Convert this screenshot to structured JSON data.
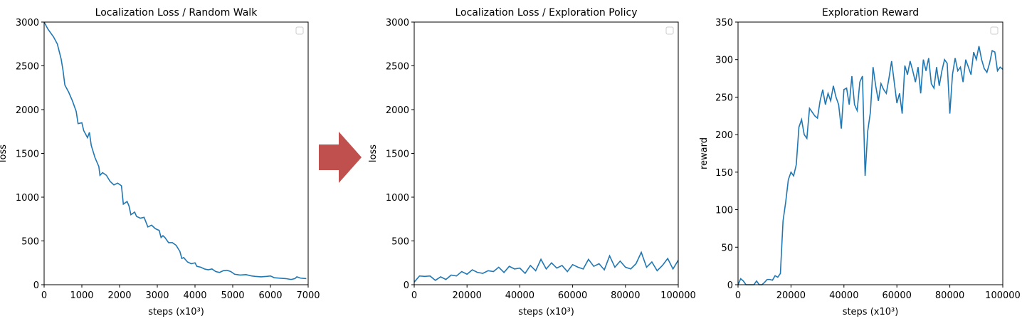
{
  "chart_data": [
    {
      "type": "line",
      "title": "Localization Loss / Random Walk",
      "xlabel": "steps (x10³)",
      "ylabel": "loss",
      "x": [
        0,
        100,
        250,
        350,
        450,
        500,
        550,
        650,
        750,
        850,
        900,
        1000,
        1050,
        1150,
        1200,
        1250,
        1350,
        1450,
        1480,
        1550,
        1650,
        1750,
        1850,
        1950,
        2050,
        2100,
        2200,
        2250,
        2300,
        2400,
        2450,
        2550,
        2650,
        2750,
        2850,
        2950,
        3050,
        3100,
        3150,
        3200,
        3300,
        3400,
        3500,
        3600,
        3650,
        3700,
        3800,
        3900,
        4000,
        4050,
        4150,
        4250,
        4350,
        4450,
        4550,
        4650,
        4750,
        4850,
        4950,
        5050,
        5200,
        5350,
        5500,
        5600,
        5750,
        5900,
        6000,
        6100,
        6250,
        6400,
        6550,
        6650,
        6700,
        6800,
        6950
      ],
      "series": [
        {
          "color": "#1f77b4",
          "values": [
            3000,
            2920,
            2830,
            2750,
            2580,
            2450,
            2280,
            2200,
            2100,
            1980,
            1840,
            1850,
            1760,
            1680,
            1740,
            1590,
            1450,
            1350,
            1250,
            1280,
            1250,
            1180,
            1140,
            1160,
            1130,
            920,
            950,
            900,
            800,
            830,
            780,
            760,
            770,
            660,
            680,
            640,
            620,
            540,
            560,
            540,
            480,
            480,
            450,
            380,
            300,
            310,
            260,
            240,
            250,
            210,
            200,
            180,
            170,
            180,
            150,
            140,
            160,
            165,
            150,
            120,
            110,
            115,
            100,
            95,
            90,
            95,
            100,
            80,
            75,
            70,
            60,
            70,
            90,
            75,
            70
          ]
        }
      ],
      "xlim": [
        0,
        7000
      ],
      "ylim": [
        0,
        3000
      ],
      "xticks": [
        0,
        1000,
        2000,
        3000,
        4000,
        5000,
        6000,
        7000
      ],
      "yticks": [
        0,
        500,
        1000,
        1500,
        2000,
        2500,
        3000
      ]
    },
    {
      "type": "line",
      "title": "Localization Loss / Exploration Policy",
      "xlabel": "steps (x10³)",
      "ylabel": "loss",
      "x": [
        0,
        2000,
        4000,
        6000,
        8000,
        10000,
        12000,
        14000,
        16000,
        18000,
        20000,
        22000,
        24000,
        26000,
        28000,
        30000,
        32000,
        34000,
        36000,
        38000,
        40000,
        42000,
        44000,
        46000,
        48000,
        50000,
        52000,
        54000,
        56000,
        58000,
        60000,
        62000,
        64000,
        66000,
        68000,
        70000,
        72000,
        74000,
        76000,
        78000,
        80000,
        82000,
        84000,
        86000,
        88000,
        90000,
        92000,
        94000,
        96000,
        98000,
        100000
      ],
      "series": [
        {
          "color": "#1f77b4",
          "values": [
            30,
            100,
            95,
            100,
            50,
            90,
            60,
            110,
            100,
            150,
            120,
            170,
            140,
            130,
            160,
            150,
            200,
            140,
            210,
            180,
            190,
            130,
            220,
            160,
            290,
            180,
            250,
            190,
            220,
            150,
            230,
            200,
            180,
            290,
            210,
            240,
            170,
            330,
            200,
            270,
            200,
            180,
            240,
            370,
            200,
            260,
            160,
            220,
            300,
            180,
            280
          ]
        }
      ],
      "xlim": [
        0,
        100000
      ],
      "ylim": [
        0,
        3000
      ],
      "xticks": [
        0,
        20000,
        40000,
        60000,
        80000,
        100000
      ],
      "yticks": [
        0,
        500,
        1000,
        1500,
        2000,
        2500,
        3000
      ]
    },
    {
      "type": "line",
      "title": "Exploration Reward",
      "xlabel": "steps (x10³)",
      "ylabel": "reward",
      "x": [
        0,
        1000,
        2000,
        3000,
        4000,
        5000,
        6000,
        7000,
        8000,
        9000,
        10000,
        11000,
        12000,
        13000,
        14000,
        15000,
        16000,
        17000,
        18000,
        19000,
        20000,
        21000,
        22000,
        23000,
        24000,
        25000,
        26000,
        27000,
        28000,
        29000,
        30000,
        31000,
        32000,
        33000,
        34000,
        35000,
        36000,
        37000,
        38000,
        39000,
        40000,
        41000,
        42000,
        43000,
        44000,
        45000,
        46000,
        47000,
        48000,
        49000,
        50000,
        51000,
        52000,
        53000,
        54000,
        55000,
        56000,
        57000,
        58000,
        59000,
        60000,
        61000,
        62000,
        63000,
        64000,
        65000,
        66000,
        67000,
        68000,
        69000,
        70000,
        71000,
        72000,
        73000,
        74000,
        75000,
        76000,
        77000,
        78000,
        79000,
        80000,
        81000,
        82000,
        83000,
        84000,
        85000,
        86000,
        87000,
        88000,
        89000,
        90000,
        91000,
        92000,
        93000,
        94000,
        95000,
        96000,
        97000,
        98000,
        99000,
        100000
      ],
      "series": [
        {
          "color": "#1f77b4",
          "values": [
            0,
            8,
            5,
            0,
            0,
            0,
            0,
            5,
            0,
            0,
            3,
            7,
            7,
            6,
            12,
            10,
            15,
            85,
            110,
            140,
            150,
            145,
            160,
            210,
            220,
            200,
            195,
            235,
            230,
            225,
            222,
            245,
            260,
            240,
            255,
            245,
            265,
            250,
            240,
            208,
            260,
            262,
            240,
            278,
            240,
            232,
            270,
            278,
            145,
            205,
            230,
            290,
            265,
            245,
            268,
            260,
            255,
            275,
            298,
            270,
            242,
            255,
            228,
            292,
            280,
            298,
            285,
            270,
            290,
            255,
            300,
            285,
            302,
            268,
            262,
            290,
            265,
            285,
            300,
            295,
            228,
            280,
            302,
            285,
            290,
            270,
            300,
            290,
            280,
            310,
            300,
            318,
            300,
            288,
            283,
            295,
            312,
            310,
            285,
            290,
            287
          ]
        }
      ],
      "xlim": [
        0,
        100000
      ],
      "ylim": [
        0,
        350
      ],
      "xticks": [
        0,
        20000,
        40000,
        60000,
        80000,
        100000
      ],
      "yticks": [
        0,
        50,
        100,
        150,
        200,
        250,
        300,
        350
      ]
    }
  ]
}
